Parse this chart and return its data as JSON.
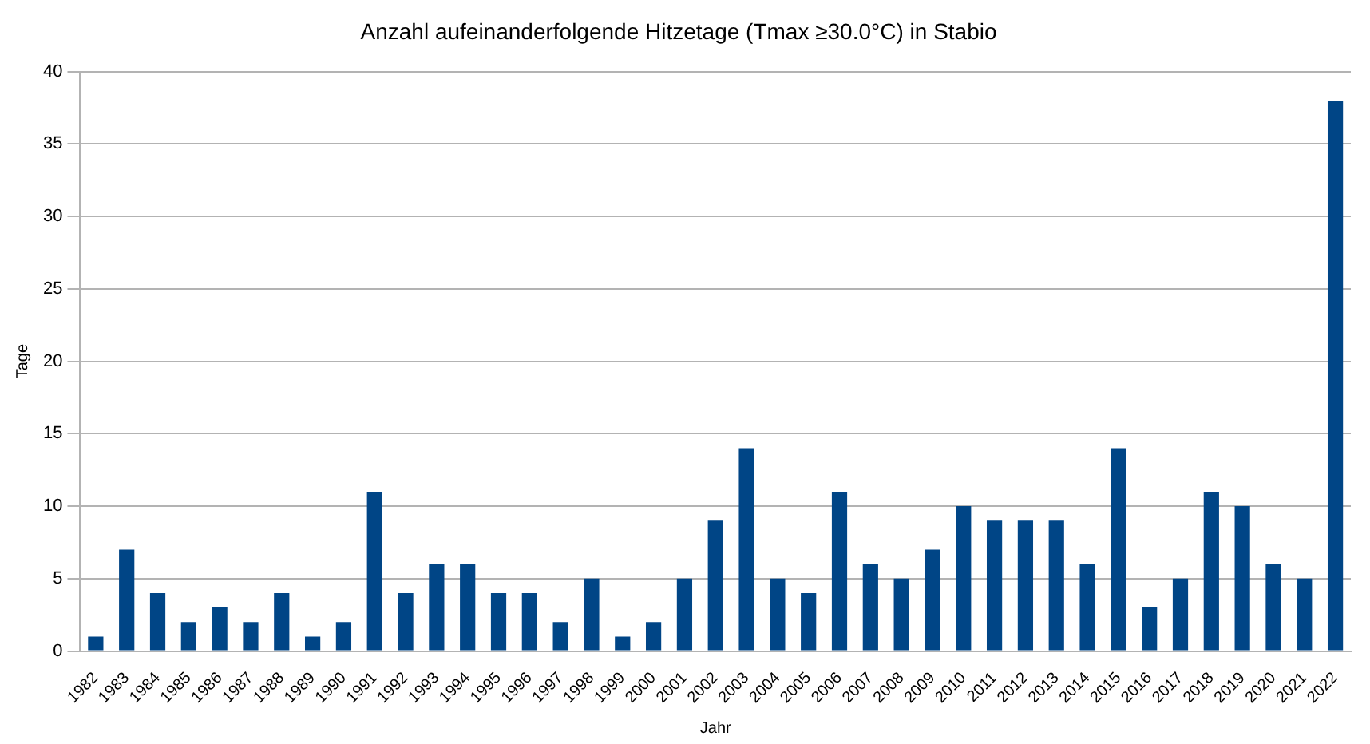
{
  "chart_data": {
    "type": "bar",
    "title": "Anzahl aufeinanderfolgende Hitzetage (Tmax ≥30.0°C) in Stabio",
    "xlabel": "Jahr",
    "ylabel": "Tage",
    "categories": [
      "1982",
      "1983",
      "1984",
      "1985",
      "1986",
      "1987",
      "1988",
      "1989",
      "1990",
      "1991",
      "1992",
      "1993",
      "1994",
      "1995",
      "1996",
      "1997",
      "1998",
      "1999",
      "2000",
      "2001",
      "2002",
      "2003",
      "2004",
      "2005",
      "2006",
      "2007",
      "2008",
      "2009",
      "2010",
      "2011",
      "2012",
      "2013",
      "2014",
      "2015",
      "2016",
      "2017",
      "2018",
      "2019",
      "2020",
      "2021",
      "2022"
    ],
    "values": [
      1,
      7,
      4,
      2,
      3,
      2,
      4,
      1,
      2,
      11,
      4,
      6,
      6,
      4,
      4,
      2,
      5,
      1,
      2,
      5,
      9,
      14,
      5,
      4,
      11,
      6,
      5,
      7,
      10,
      9,
      9,
      9,
      6,
      14,
      3,
      5,
      11,
      10,
      6,
      5,
      38
    ],
    "color": "#004586",
    "ylim": [
      0,
      40
    ],
    "yticks": [
      0,
      5,
      10,
      15,
      20,
      25,
      30,
      35,
      40
    ],
    "grid": "y",
    "legend": false
  }
}
